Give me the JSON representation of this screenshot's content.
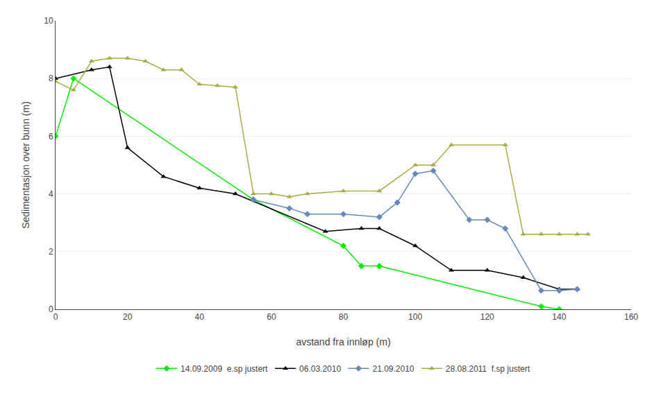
{
  "chart_data": {
    "type": "line",
    "xlabel": "avstand fra innløp (m)",
    "ylabel": "Sedimentasjon over bunn (m)",
    "xlim": [
      0,
      160
    ],
    "ylim": [
      0,
      10
    ],
    "xticks": [
      0,
      20,
      40,
      60,
      80,
      100,
      120,
      140,
      160
    ],
    "yticks": [
      0,
      2,
      4,
      6,
      8,
      10
    ],
    "grid": "y",
    "legend": "bottom",
    "series": [
      {
        "name": "14.09.2009  e.sp justert",
        "color": "#00ee00",
        "marker": "diamond",
        "x": [
          0,
          5,
          55,
          80,
          85,
          90,
          135,
          140
        ],
        "values": [
          6.0,
          8.0,
          3.8,
          2.2,
          1.5,
          1.5,
          0.1,
          0.0
        ]
      },
      {
        "name": "06.03.2010",
        "color": "#000000",
        "marker": "triangle-up",
        "x": [
          0,
          10,
          15,
          20,
          30,
          40,
          50,
          75,
          85,
          90,
          100,
          110,
          120,
          130,
          140,
          145
        ],
        "values": [
          8.0,
          8.3,
          8.4,
          5.6,
          4.6,
          4.2,
          4.0,
          2.7,
          2.8,
          2.8,
          2.2,
          1.35,
          1.35,
          1.1,
          0.7,
          0.7
        ]
      },
      {
        "name": "21.09.2010",
        "color": "#6688bb",
        "marker": "diamond",
        "x": [
          55,
          65,
          70,
          80,
          90,
          95,
          100,
          105,
          115,
          120,
          125,
          135,
          140,
          145
        ],
        "values": [
          3.8,
          3.5,
          3.3,
          3.3,
          3.2,
          3.7,
          4.7,
          4.8,
          3.1,
          3.1,
          2.8,
          0.65,
          0.65,
          0.7
        ]
      },
      {
        "name": "28.08.2011  f.sp justert",
        "color": "#aaaa44",
        "marker": "triangle-up",
        "x": [
          0,
          5,
          10,
          15,
          20,
          25,
          30,
          35,
          40,
          45,
          50,
          55,
          60,
          65,
          70,
          80,
          90,
          100,
          105,
          110,
          125,
          130,
          135,
          140,
          145,
          148
        ],
        "values": [
          7.9,
          7.6,
          8.6,
          8.7,
          8.7,
          8.6,
          8.3,
          8.3,
          7.8,
          7.75,
          7.7,
          4.0,
          4.0,
          3.9,
          4.0,
          4.1,
          4.1,
          5.0,
          5.0,
          5.7,
          5.7,
          2.6,
          2.6,
          2.6,
          2.6,
          2.6
        ]
      }
    ]
  }
}
